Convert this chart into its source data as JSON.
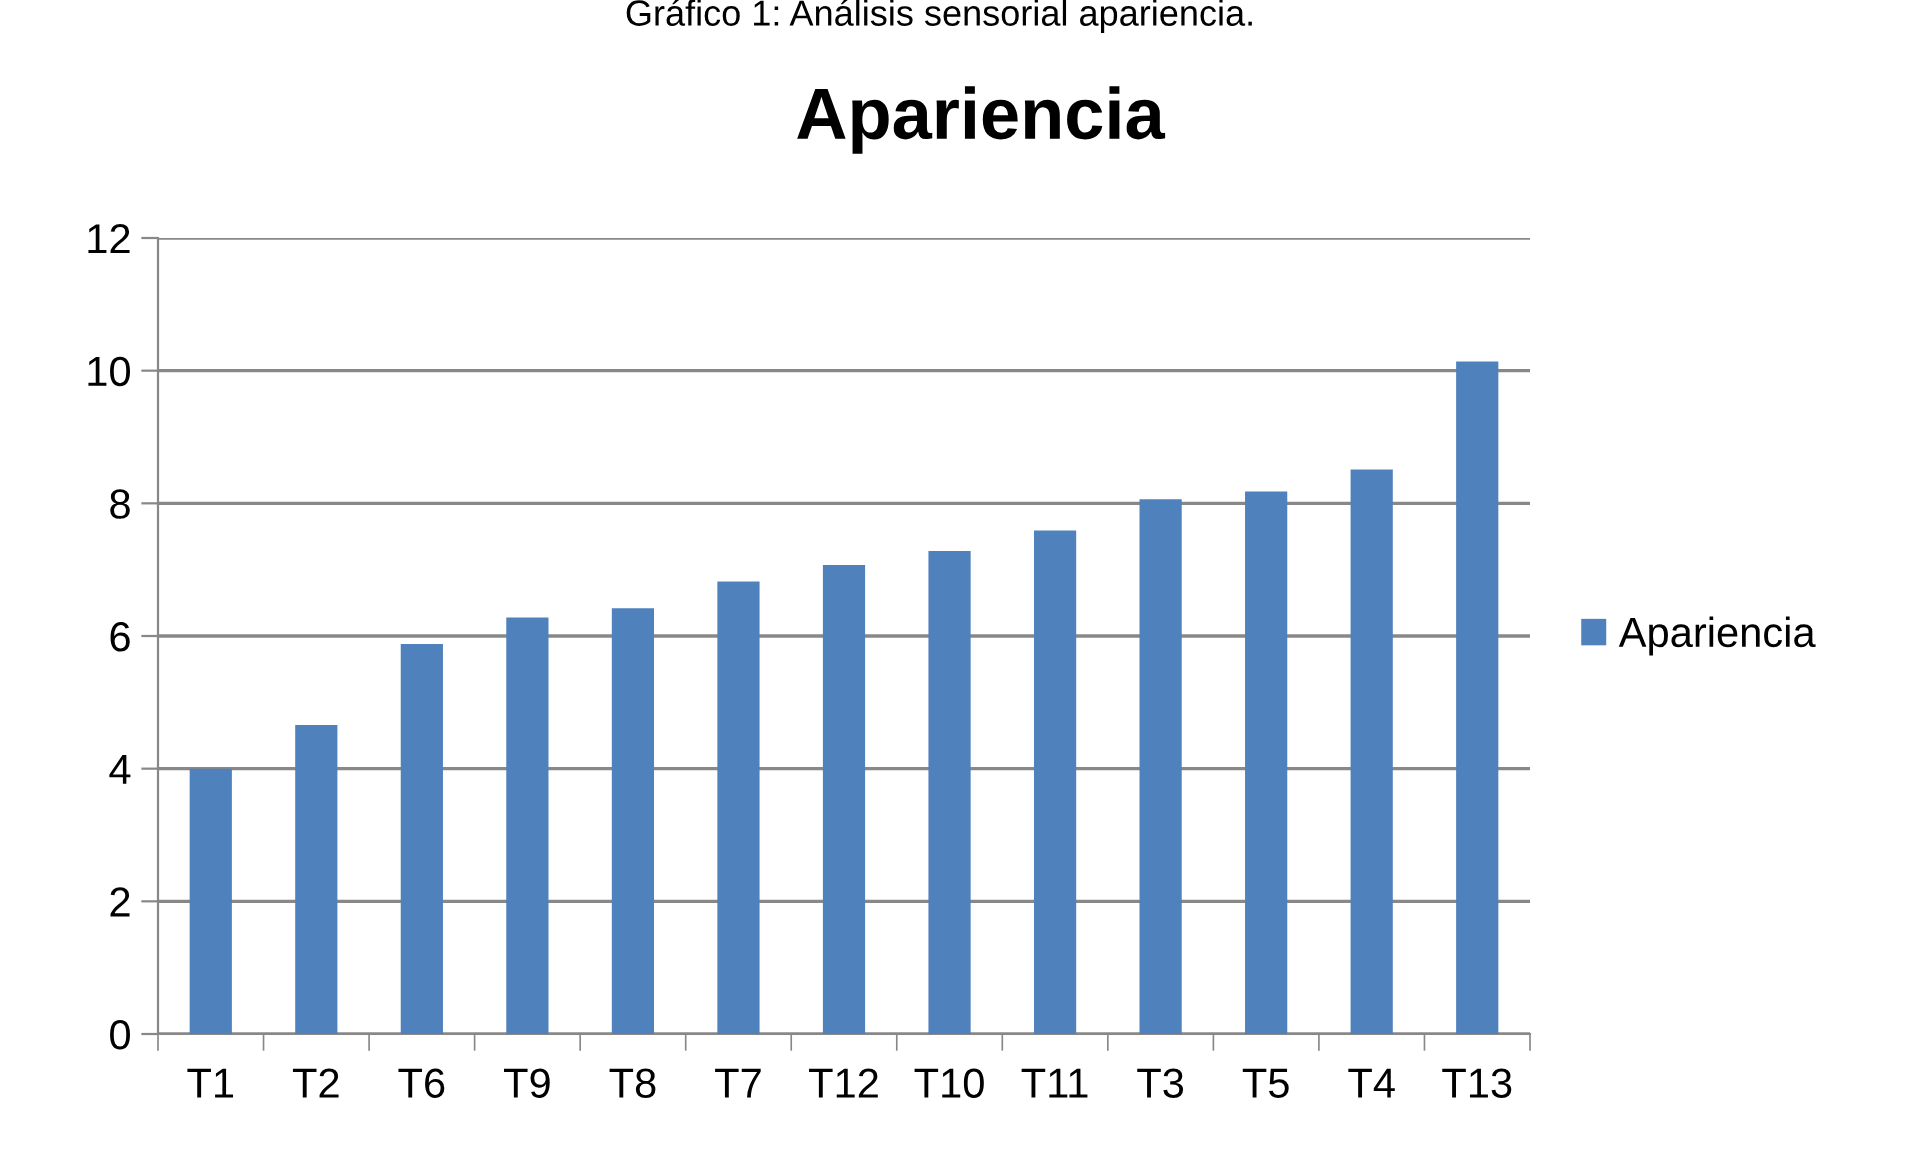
{
  "chart_data": {
    "type": "bar",
    "title": "Apariencia",
    "annotations": [
      "Gráfico 1: Análisis sensorial apariencia."
    ],
    "categories": [
      "T1",
      "T2",
      "T6",
      "T9",
      "T8",
      "T7",
      "T12",
      "T10",
      "T11",
      "T3",
      "T5",
      "T4",
      "T13"
    ],
    "series": [
      {
        "name": "Apariencia",
        "color": "#4f81bd",
        "values": [
          4.0,
          4.66,
          5.88,
          6.28,
          6.42,
          6.82,
          7.07,
          7.28,
          7.59,
          8.06,
          8.18,
          8.51,
          10.14
        ]
      }
    ],
    "ylim": [
      0,
      12
    ],
    "yticks": [
      0,
      2,
      4,
      6,
      8,
      10,
      12
    ],
    "grid": "y",
    "legend": "right"
  }
}
